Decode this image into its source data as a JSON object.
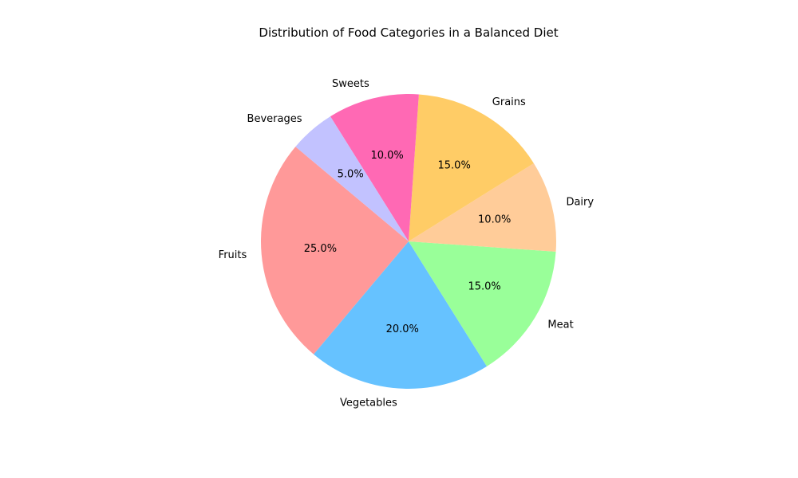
{
  "chart_data": {
    "type": "pie",
    "title": "Distribution of Food Categories in a Balanced Diet",
    "categories": [
      "Fruits",
      "Vegetables",
      "Meat",
      "Dairy",
      "Grains",
      "Sweets",
      "Beverages"
    ],
    "values": [
      25.0,
      20.0,
      15.0,
      10.0,
      15.0,
      10.0,
      5.0
    ],
    "value_labels": [
      "25.0%",
      "20.0%",
      "15.0%",
      "10.0%",
      "15.0%",
      "10.0%",
      "5.0%"
    ],
    "colors": [
      "#ff9999",
      "#66c2ff",
      "#99ff99",
      "#ffcc99",
      "#ffcc66",
      "#ff69b4",
      "#c2c2ff"
    ],
    "start_angle_deg": 140,
    "direction": "counterclockwise",
    "legend": "none"
  }
}
